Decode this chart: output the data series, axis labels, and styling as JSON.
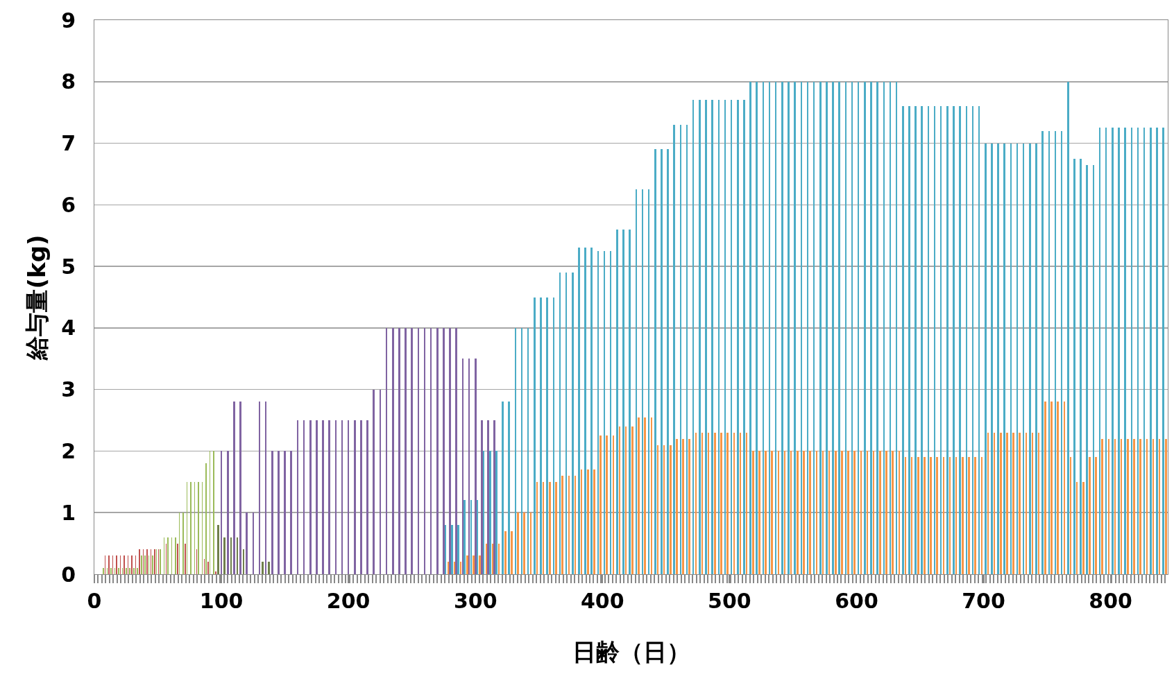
{
  "chart_data": {
    "type": "bar",
    "xlabel": "日齢（日）",
    "ylabel": "給与量(kg)",
    "xlim": [
      0,
      845
    ],
    "xticks": [
      0,
      100,
      200,
      300,
      400,
      500,
      600,
      700,
      800
    ],
    "ylim": [
      0,
      9
    ],
    "yticks": [
      0,
      1,
      2,
      3,
      4,
      5,
      6,
      7,
      8,
      9
    ],
    "grid": "y",
    "series": [
      {
        "color": "#c0504d",
        "x": [
          8.5,
          11.5,
          14.5,
          17.5,
          20.5,
          23.5,
          26.5,
          29.5,
          32.5,
          35.5,
          38.5,
          41.5,
          44.5,
          47.5,
          50.5,
          56.5,
          65.5,
          71.5,
          80.5,
          86.5,
          89.5,
          95.5
        ],
        "values": [
          0.3,
          0.3,
          0.3,
          0.3,
          0.3,
          0.3,
          0.3,
          0.3,
          0.3,
          0.4,
          0.4,
          0.4,
          0.4,
          0.4,
          0.4,
          0.5,
          0.5,
          0.5,
          0.4,
          0.25,
          0.2,
          0.05
        ]
      },
      {
        "color": "#9bbb59",
        "x": [
          7,
          10,
          13,
          16,
          19,
          22,
          25,
          28,
          31,
          34,
          37,
          40,
          43,
          46,
          49,
          52,
          55,
          58,
          61,
          64,
          67,
          70,
          73,
          76,
          79,
          82,
          85,
          88,
          91,
          94
        ],
        "values": [
          0.1,
          0.1,
          0.1,
          0.1,
          0.1,
          0.1,
          0.1,
          0.1,
          0.1,
          0.1,
          0.3,
          0.3,
          0.3,
          0.3,
          0.4,
          0.4,
          0.6,
          0.6,
          0.6,
          0.6,
          1.0,
          1.0,
          1.5,
          1.5,
          1.5,
          1.5,
          1.5,
          1.8,
          2.0,
          2.0
        ]
      },
      {
        "color": "#8064a2",
        "x": [
          100,
          105,
          110,
          115,
          120,
          125,
          130,
          135,
          140,
          145,
          150,
          155,
          160,
          165,
          170,
          175,
          180,
          185,
          190,
          195,
          200,
          205,
          210,
          215,
          220,
          225,
          230,
          235,
          240,
          245,
          250,
          255,
          260,
          265,
          270,
          275,
          280,
          285,
          290,
          295,
          300,
          305,
          310,
          315
        ],
        "values": [
          2.0,
          2.0,
          2.8,
          2.8,
          1.0,
          1.0,
          2.8,
          2.8,
          2.0,
          2.0,
          2.0,
          2.0,
          2.5,
          2.5,
          2.5,
          2.5,
          2.5,
          2.5,
          2.5,
          2.5,
          2.5,
          2.5,
          2.5,
          2.5,
          3.0,
          3.0,
          4.0,
          4.0,
          4.0,
          4.0,
          4.0,
          4.0,
          4.0,
          4.0,
          4.0,
          4.0,
          4.0,
          4.0,
          3.5,
          3.5,
          3.5,
          2.5,
          2.5,
          2.5
        ]
      },
      {
        "color": "#6f7f4b",
        "x": [
          97.5,
          102.5,
          107.5,
          112.5,
          117.5,
          132.5,
          137.5
        ],
        "values": [
          0.8,
          0.6,
          0.6,
          0.6,
          0.4,
          0.2,
          0.2
        ]
      },
      {
        "color": "#4bacc6",
        "x": [
          276.5,
          281.5,
          286.5,
          291.5,
          296.5,
          301.5,
          306.5,
          311.5,
          316.5,
          321.5,
          326.5,
          331.5,
          336.5,
          341.5,
          346.5,
          351.5,
          356.5,
          361.5,
          366.5,
          371.5,
          376.5,
          381.5,
          386.5,
          391.5,
          396.5,
          401.5,
          406.5,
          411.5,
          416.5,
          421.5,
          426.5,
          431.5,
          436.5,
          441.5,
          446.5,
          451.5,
          456.5,
          461.5,
          466.5,
          471.5,
          476.5,
          481.5,
          486.5,
          491.5,
          496.5,
          501.5,
          506.5,
          511.5,
          516.5,
          521.5,
          526.5,
          531.5,
          536.5,
          541.5,
          546.5,
          551.5,
          556.5,
          561.5,
          566.5,
          571.5,
          576.5,
          581.5,
          586.5,
          591.5,
          596.5,
          601.5,
          606.5,
          611.5,
          616.5,
          621.5,
          626.5,
          631.5,
          636.5,
          641.5,
          646.5,
          651.5,
          656.5,
          661.5,
          666.5,
          671.5,
          676.5,
          681.5,
          686.5,
          691.5,
          696.5,
          701.5,
          706.5,
          711.5,
          716.5,
          721.5,
          726.5,
          731.5,
          736.5,
          741.5,
          746.5,
          751.5,
          756.5,
          761.5,
          766.5,
          771.5,
          776.5,
          781.5,
          786.5,
          791.5,
          796.5,
          801.5,
          806.5,
          811.5,
          816.5,
          821.5,
          826.5,
          831.5,
          836.5,
          841.5
        ],
        "values": [
          0.8,
          0.8,
          0.8,
          1.2,
          1.2,
          1.2,
          2.0,
          2.0,
          2.0,
          2.8,
          2.8,
          4.0,
          4.0,
          4.0,
          4.5,
          4.5,
          4.5,
          4.5,
          4.9,
          4.9,
          4.9,
          5.3,
          5.3,
          5.3,
          5.25,
          5.25,
          5.25,
          5.6,
          5.6,
          5.6,
          6.25,
          6.25,
          6.25,
          6.9,
          6.9,
          6.9,
          7.3,
          7.3,
          7.3,
          7.7,
          7.7,
          7.7,
          7.7,
          7.7,
          7.7,
          7.7,
          7.7,
          7.7,
          8.0,
          8.0,
          8.0,
          8.0,
          8.0,
          8.0,
          8.0,
          8.0,
          8.0,
          8.0,
          8.0,
          8.0,
          8.0,
          8.0,
          8.0,
          8.0,
          8.0,
          8.0,
          8.0,
          8.0,
          8.0,
          8.0,
          8.0,
          8.0,
          7.6,
          7.6,
          7.6,
          7.6,
          7.6,
          7.6,
          7.6,
          7.6,
          7.6,
          7.6,
          7.6,
          7.6,
          7.6,
          7.0,
          7.0,
          7.0,
          7.0,
          7.0,
          7.0,
          7.0,
          7.0,
          7.0,
          7.2,
          7.2,
          7.2,
          7.2,
          8.0,
          6.75,
          6.75,
          6.65,
          6.65,
          7.25,
          7.25,
          7.25,
          7.25,
          7.25,
          7.25,
          7.25,
          7.25,
          7.25,
          7.25,
          7.25
        ]
      },
      {
        "color": "#f79646",
        "x": [
          278.5,
          283.5,
          288.5,
          293.5,
          298.5,
          303.5,
          308.5,
          313.5,
          318.5,
          323.5,
          328.5,
          333.5,
          338.5,
          343.5,
          348.5,
          353.5,
          358.5,
          363.5,
          368.5,
          373.5,
          378.5,
          383.5,
          388.5,
          393.5,
          398.5,
          403.5,
          408.5,
          413.5,
          418.5,
          423.5,
          428.5,
          433.5,
          438.5,
          443.5,
          448.5,
          453.5,
          458.5,
          463.5,
          468.5,
          473.5,
          478.5,
          483.5,
          488.5,
          493.5,
          498.5,
          503.5,
          508.5,
          513.5,
          518.5,
          523.5,
          528.5,
          533.5,
          538.5,
          543.5,
          548.5,
          553.5,
          558.5,
          563.5,
          568.5,
          573.5,
          578.5,
          583.5,
          588.5,
          593.5,
          598.5,
          603.5,
          608.5,
          613.5,
          618.5,
          623.5,
          628.5,
          633.5,
          638.5,
          643.5,
          648.5,
          653.5,
          658.5,
          663.5,
          668.5,
          673.5,
          678.5,
          683.5,
          688.5,
          693.5,
          698.5,
          703.5,
          708.5,
          713.5,
          718.5,
          723.5,
          728.5,
          733.5,
          738.5,
          743.5,
          748.5,
          753.5,
          758.5,
          763.5,
          768.5,
          773.5,
          778.5,
          783.5,
          788.5,
          793.5,
          798.5,
          803.5,
          808.5,
          813.5,
          818.5,
          823.5,
          828.5,
          833.5,
          838.5,
          843.5
        ],
        "values": [
          0.2,
          0.2,
          0.2,
          0.3,
          0.3,
          0.3,
          0.5,
          0.5,
          0.5,
          0.7,
          0.7,
          1.0,
          1.0,
          1.0,
          1.5,
          1.5,
          1.5,
          1.5,
          1.6,
          1.6,
          1.6,
          1.7,
          1.7,
          1.7,
          2.25,
          2.25,
          2.25,
          2.4,
          2.4,
          2.4,
          2.55,
          2.55,
          2.55,
          2.1,
          2.1,
          2.1,
          2.2,
          2.2,
          2.2,
          2.3,
          2.3,
          2.3,
          2.3,
          2.3,
          2.3,
          2.3,
          2.3,
          2.3,
          2.0,
          2.0,
          2.0,
          2.0,
          2.0,
          2.0,
          2.0,
          2.0,
          2.0,
          2.0,
          2.0,
          2.0,
          2.0,
          2.0,
          2.0,
          2.0,
          2.0,
          2.0,
          2.0,
          2.0,
          2.0,
          2.0,
          2.0,
          2.0,
          1.9,
          1.9,
          1.9,
          1.9,
          1.9,
          1.9,
          1.9,
          1.9,
          1.9,
          1.9,
          1.9,
          1.9,
          1.9,
          2.3,
          2.3,
          2.3,
          2.3,
          2.3,
          2.3,
          2.3,
          2.3,
          2.3,
          2.8,
          2.8,
          2.8,
          2.8,
          1.9,
          1.5,
          1.5,
          1.9,
          1.9,
          2.2,
          2.2,
          2.2,
          2.2,
          2.2,
          2.2,
          2.2,
          2.2,
          2.2,
          2.2,
          2.2
        ]
      }
    ]
  }
}
